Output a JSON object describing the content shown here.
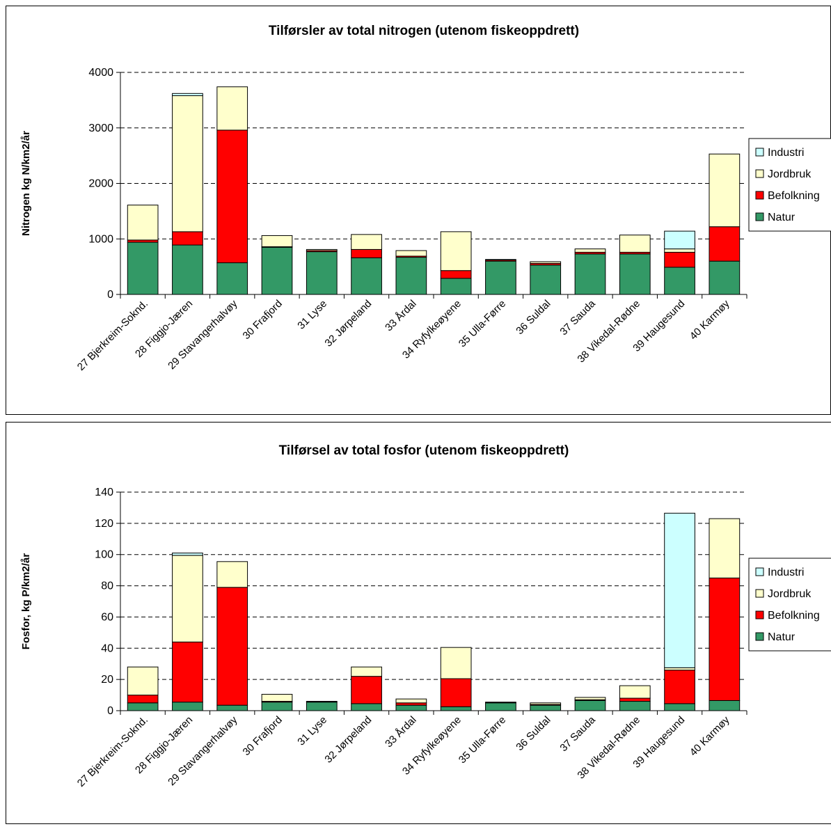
{
  "colors": {
    "Industri": "#ccffff",
    "Jordbruk": "#ffffcc",
    "Befolkning": "#ff0000",
    "Natur": "#339966"
  },
  "chart_data": [
    {
      "type": "bar",
      "stacked": true,
      "title": "Tilførsler av total nitrogen (utenom fiskeoppdrett)",
      "xlabel": "",
      "ylabel": "Nitrogen kg N/km2/år",
      "ylim": [
        0,
        4000
      ],
      "yticks": [
        "0",
        "1000",
        "2000",
        "3000",
        "4000"
      ],
      "yticks_values": [
        0,
        1000,
        2000,
        3000,
        4000
      ],
      "grid": true,
      "legend_position": "right",
      "legend_order": [
        "Industri",
        "Jordbruk",
        "Befolkning",
        "Natur"
      ],
      "categories": [
        "27 Bjerkreim-Soknd.",
        "28 Figgjo-Jæren",
        "29 Stavangerhalvøy",
        "30 Frafjord",
        "31 Lyse",
        "32 Jørpeland",
        "33 Årdal",
        "34 Ryfylkeøyene",
        "35 Ulla-Førre",
        "36 Suldal",
        "37 Sauda",
        "38 Vikedal-Rødne",
        "39 Haugesund",
        "40 Karmøy"
      ],
      "series": [
        {
          "name": "Natur",
          "values": [
            940,
            890,
            570,
            850,
            770,
            660,
            670,
            290,
            600,
            530,
            730,
            730,
            490,
            600
          ]
        },
        {
          "name": "Befolkning",
          "values": [
            40,
            240,
            2390,
            10,
            20,
            150,
            20,
            140,
            20,
            30,
            30,
            30,
            270,
            620
          ]
        },
        {
          "name": "Jordbruk",
          "values": [
            630,
            2450,
            780,
            200,
            20,
            270,
            100,
            700,
            10,
            30,
            60,
            310,
            60,
            1310
          ]
        },
        {
          "name": "Industri",
          "values": [
            0,
            40,
            0,
            0,
            0,
            0,
            0,
            0,
            0,
            0,
            0,
            0,
            320,
            0
          ]
        }
      ]
    },
    {
      "type": "bar",
      "stacked": true,
      "title": "Tilførsel av total fosfor (utenom fiskeoppdrett)",
      "xlabel": "",
      "ylabel": "Fosfor, kg P/km2/år",
      "ylim": [
        0,
        140
      ],
      "yticks": [
        "0",
        "20",
        "40",
        "60",
        "80",
        "100",
        "120",
        "140"
      ],
      "yticks_values": [
        0,
        20,
        40,
        60,
        80,
        100,
        120,
        140
      ],
      "grid": true,
      "legend_position": "right",
      "legend_order": [
        "Industri",
        "Jordbruk",
        "Befolkning",
        "Natur"
      ],
      "categories": [
        "27 Bjerkreim-Soknd.",
        "28 Figgjo-Jæren",
        "29 Stavangerhalvøy",
        "30 Frafjord",
        "31 Lyse",
        "32 Jørpeland",
        "33 Årdal",
        "34 Ryfylkeøyene",
        "35 Ulla-Førre",
        "36 Suldal",
        "37 Sauda",
        "38 Vikedal-Rødne",
        "39 Haugesund",
        "40 Karmøy"
      ],
      "series": [
        {
          "name": "Natur",
          "values": [
            5,
            5.5,
            3.5,
            5.5,
            5.5,
            4.5,
            3.5,
            2.5,
            5,
            3.5,
            6.5,
            6,
            4.5,
            6.5
          ]
        },
        {
          "name": "Befolkning",
          "values": [
            5,
            38.5,
            75.5,
            0.5,
            0.2,
            17.5,
            1.5,
            18,
            0.2,
            0.5,
            0.5,
            2,
            21.5,
            78.5
          ]
        },
        {
          "name": "Jordbruk",
          "values": [
            18,
            55.5,
            16.5,
            4.5,
            0.3,
            6,
            2.5,
            20,
            0.3,
            1,
            1.5,
            8,
            1.5,
            38
          ]
        },
        {
          "name": "Industri",
          "values": [
            0,
            1.5,
            0,
            0,
            0,
            0,
            0,
            0,
            0,
            0,
            0,
            0,
            99,
            0
          ]
        }
      ]
    }
  ]
}
